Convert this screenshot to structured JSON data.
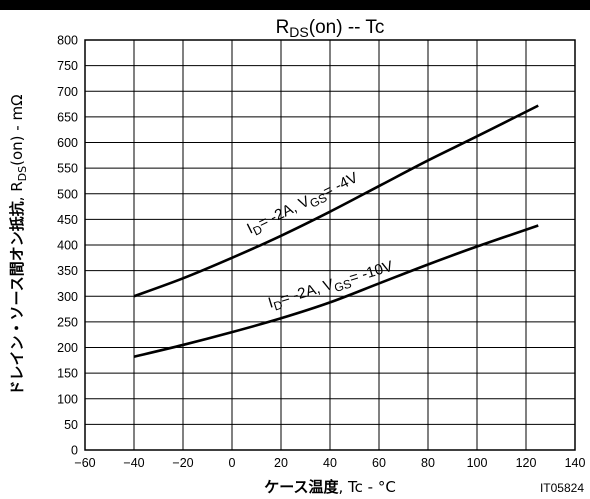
{
  "chart_data": {
    "type": "line",
    "title": "RDS(on)  --  Tc",
    "xlabel": "ケース温度, Tc - °C",
    "ylabel": "ドレイン・ソース間オン抵抗, RDS(on) - mΩ",
    "xlim": [
      -60,
      140
    ],
    "ylim": [
      0,
      800
    ],
    "x_ticks": [
      "-60",
      "-40",
      "-20",
      "0",
      "20",
      "40",
      "60",
      "80",
      "100",
      "120",
      "140"
    ],
    "y_ticks": [
      "0",
      "50",
      "100",
      "150",
      "200",
      "250",
      "300",
      "350",
      "400",
      "450",
      "500",
      "550",
      "600",
      "650",
      "700",
      "750",
      "800"
    ],
    "grid": true,
    "series": [
      {
        "name": "ID= -2A, VGS= -4V",
        "x": [
          -40,
          -20,
          0,
          20,
          40,
          60,
          80,
          100,
          125
        ],
        "values": [
          300,
          335,
          375,
          418,
          465,
          515,
          565,
          612,
          672
        ]
      },
      {
        "name": "ID= -2A, VGS= -10V",
        "x": [
          -40,
          -20,
          0,
          20,
          40,
          60,
          80,
          100,
          125
        ],
        "values": [
          182,
          205,
          230,
          257,
          288,
          325,
          362,
          397,
          438
        ]
      }
    ],
    "figure_code": "IT05824"
  }
}
